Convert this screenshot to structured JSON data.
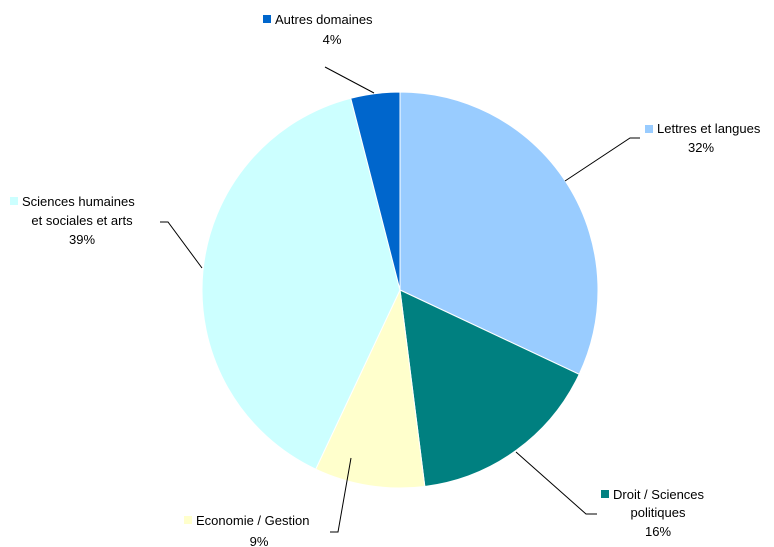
{
  "chart_data": {
    "type": "pie",
    "title": "",
    "unit": "%",
    "start_angle_deg": 0,
    "direction": "clockwise",
    "slices": [
      {
        "label": "Lettres et langues",
        "label_lines": [
          "Lettres et langues"
        ],
        "value": 32,
        "value_label": "32%",
        "color": "#99ccff"
      },
      {
        "label": "Droit / Sciences politiques",
        "label_lines": [
          "Droit / Sciences",
          "politiques"
        ],
        "value": 16,
        "value_label": "16%",
        "color": "#008080"
      },
      {
        "label": "Economie / Gestion",
        "label_lines": [
          "Economie / Gestion"
        ],
        "value": 9,
        "value_label": "9%",
        "color": "#ffffcc"
      },
      {
        "label": "Sciences humaines et sociales et arts",
        "label_lines": [
          "Sciences humaines",
          "et sociales et arts"
        ],
        "value": 39,
        "value_label": "39%",
        "color": "#ccffff"
      },
      {
        "label": "Autres domaines",
        "label_lines": [
          "Autres domaines"
        ],
        "value": 4,
        "value_label": "4%",
        "color": "#0066cc"
      }
    ]
  }
}
